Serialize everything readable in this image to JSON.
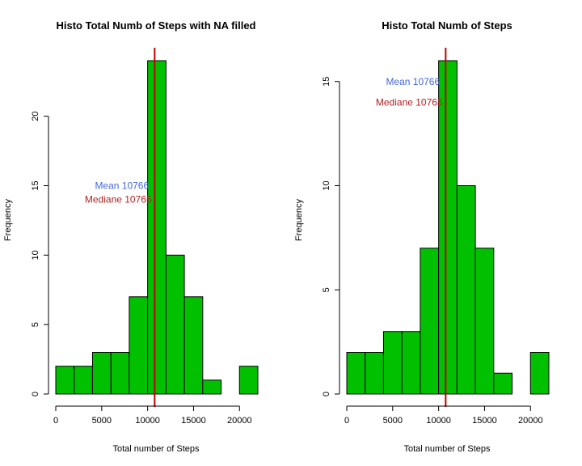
{
  "chart_data": [
    {
      "type": "bar",
      "title": "Histo Total Numb of Steps with NA filled",
      "xlabel": "Total number of Steps",
      "ylabel": "Frequency",
      "bin_edges": [
        0,
        2000,
        4000,
        6000,
        8000,
        10000,
        12000,
        14000,
        16000,
        18000,
        20000,
        22000
      ],
      "values": [
        2,
        2,
        3,
        3,
        7,
        24,
        10,
        7,
        1,
        0,
        2
      ],
      "xlim": [
        0,
        22000
      ],
      "ylim": [
        0,
        24
      ],
      "xticks": [
        0,
        5000,
        10000,
        15000,
        20000
      ],
      "xtick_labels": [
        "0",
        "5000",
        "10000",
        "15000",
        "20000"
      ],
      "yticks": [
        0,
        5,
        10,
        15,
        20
      ],
      "ytick_labels": [
        "0",
        "5",
        "10",
        "15",
        "20"
      ],
      "bar_color": "#00C000",
      "vline": {
        "x": 10766,
        "color": "#C00000"
      },
      "annotations": [
        {
          "text": "Mean  10766",
          "x": 7200,
          "y": 15,
          "color": "#4169E1"
        },
        {
          "text": "Mediane  10765",
          "x": 6800,
          "y": 14,
          "color": "#B22222"
        }
      ]
    },
    {
      "type": "bar",
      "title": "Histo Total Numb of Steps",
      "xlabel": "Total number of Steps",
      "ylabel": "Frequency",
      "bin_edges": [
        0,
        2000,
        4000,
        6000,
        8000,
        10000,
        12000,
        14000,
        16000,
        18000,
        20000,
        22000
      ],
      "values": [
        2,
        2,
        3,
        3,
        7,
        16,
        10,
        7,
        1,
        0,
        2
      ],
      "xlim": [
        0,
        22000
      ],
      "ylim": [
        0,
        16
      ],
      "xticks": [
        0,
        5000,
        10000,
        15000,
        20000
      ],
      "xtick_labels": [
        "0",
        "5000",
        "10000",
        "15000",
        "20000"
      ],
      "yticks": [
        0,
        5,
        10,
        15
      ],
      "ytick_labels": [
        "0",
        "5",
        "10",
        "15"
      ],
      "bar_color": "#00C000",
      "vline": {
        "x": 10766,
        "color": "#C00000"
      },
      "annotations": [
        {
          "text": "Mean  10766",
          "x": 7200,
          "y": 15,
          "color": "#4169E1"
        },
        {
          "text": "Mediane  10765",
          "x": 6800,
          "y": 14,
          "color": "#B22222"
        }
      ]
    }
  ]
}
